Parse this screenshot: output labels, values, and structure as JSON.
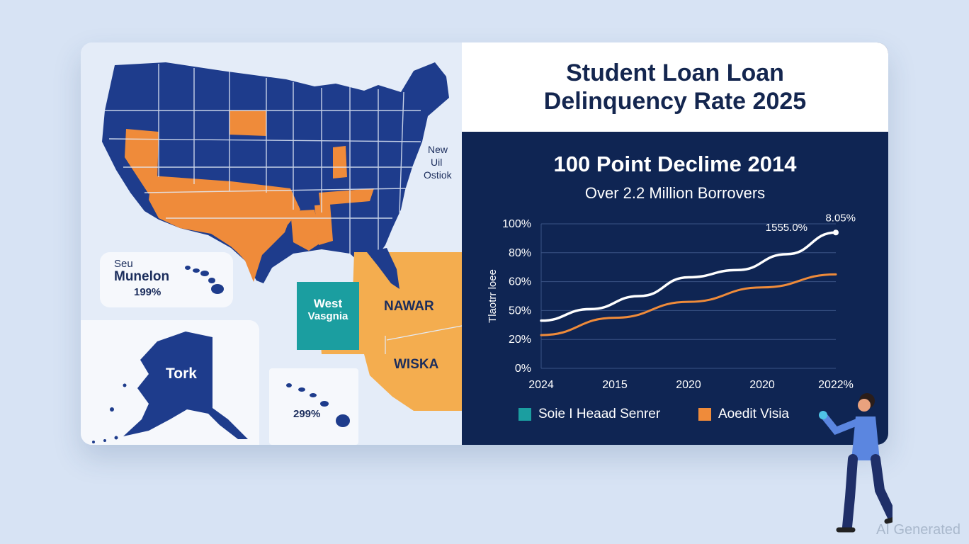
{
  "map": {
    "labels": {
      "northeast": [
        "New",
        "Uil",
        "Ostiok"
      ],
      "hawaii_box": [
        "Seu",
        "Munelon",
        "199%"
      ],
      "alaska": "Tork",
      "hawaii_pct": "299%",
      "west_virginia": [
        "West",
        "Vasgnia"
      ],
      "block_upper": "NAWAR",
      "block_lower": "WISKA"
    },
    "colors": {
      "blue": "#1e3c8c",
      "orange": "#ef8b3a",
      "light_orange": "#f4ad4f",
      "teal": "#1b9ea0"
    }
  },
  "chart_data": {
    "type": "line",
    "title": "Student Loan Loan Delinquency Rate 2025",
    "headline": "100 Point Declime 2014",
    "subheadline": "Over 2.2 Million Borrovers",
    "ylabel": "Tlaotrr loee",
    "x_tick_labels": [
      "2024",
      "2015",
      "2020",
      "2020",
      "2022%"
    ],
    "y_tick_labels": [
      "0%",
      "20%",
      "50%",
      "60%",
      "80%",
      "100%"
    ],
    "ylim": [
      0,
      100
    ],
    "series": [
      {
        "name": "Soie I Heaad Senrer",
        "color": "#ffffff",
        "values": [
          33,
          41,
          50,
          63,
          68,
          79,
          94
        ]
      },
      {
        "name": "Aoedit Visia",
        "color": "#ef8b3a",
        "values": [
          23,
          35,
          46,
          56,
          65
        ]
      }
    ],
    "annotations": [
      {
        "text": "1555.0%",
        "series": 0
      },
      {
        "text": "8.05%",
        "series": 0
      }
    ]
  },
  "watermark": "AI Generated"
}
